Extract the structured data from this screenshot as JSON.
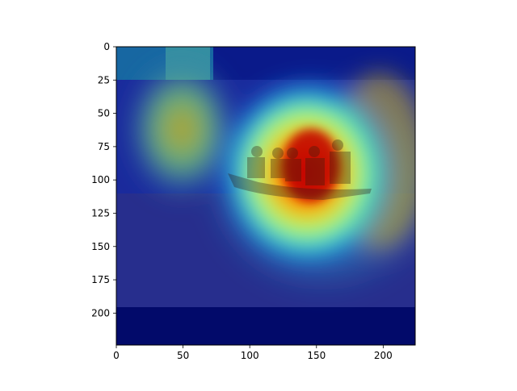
{
  "chart_data": {
    "type": "heatmap",
    "title": "",
    "xlabel": "",
    "ylabel": "",
    "xlim": [
      0,
      224
    ],
    "ylim": [
      224,
      0
    ],
    "x_ticks": [
      "0",
      "50",
      "100",
      "150",
      "200"
    ],
    "y_ticks": [
      "0",
      "25",
      "50",
      "75",
      "100",
      "125",
      "150",
      "175",
      "200"
    ],
    "colormap": "jet",
    "overlay": "photo of rescuers in a boat on flood water with a class-activation heatmap",
    "colors": {
      "background": "#ffffff",
      "axis": "#000000",
      "jet_low": "#00007f",
      "jet_high": "#7f0000"
    }
  }
}
